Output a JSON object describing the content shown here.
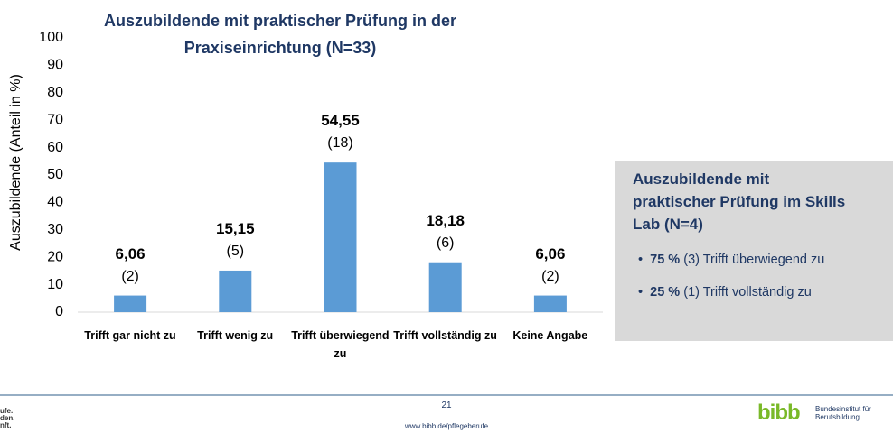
{
  "chart_data": {
    "type": "bar",
    "title": "Auszubildende mit praktischer Prüfung in der Praxiseinrichtung (N=33)",
    "y_label": "Auszubildende (Anteil in %)",
    "categories": [
      "Trifft gar nicht zu",
      "Trifft wenig zu",
      "Trifft überwiegend zu",
      "Trifft vollständig zu",
      "Keine Angabe"
    ],
    "values": [
      6.06,
      15.15,
      54.55,
      18.18,
      6.06
    ],
    "value_labels": [
      "6,06",
      "15,15",
      "54,55",
      "18,18",
      "6,06"
    ],
    "count_labels": [
      "(2)",
      "(5)",
      "(18)",
      "(6)",
      "(2)"
    ],
    "color": "#5b9bd5",
    "ylim": [
      0,
      100
    ],
    "yticks": [
      0,
      10,
      20,
      30,
      40,
      50,
      60,
      70,
      80,
      90,
      100
    ],
    "grid": false
  },
  "side_box": {
    "title": "Auszubildende mit praktischer Prüfung im Skills Lab (N=4)",
    "items": [
      {
        "bold": "75 %",
        "text": "(3) Trifft überwiegend zu"
      },
      {
        "bold": "25 %",
        "text": "(1) Trifft vollständig zu"
      }
    ]
  },
  "footer": {
    "page": "21",
    "url": "www.bibb.de/pflegeberufe",
    "logo_mark": "bibb",
    "logo_text": "Bundesinstitut für Berufsbildung",
    "left_fragment": [
      "ufe.",
      "den.",
      "nft."
    ]
  }
}
